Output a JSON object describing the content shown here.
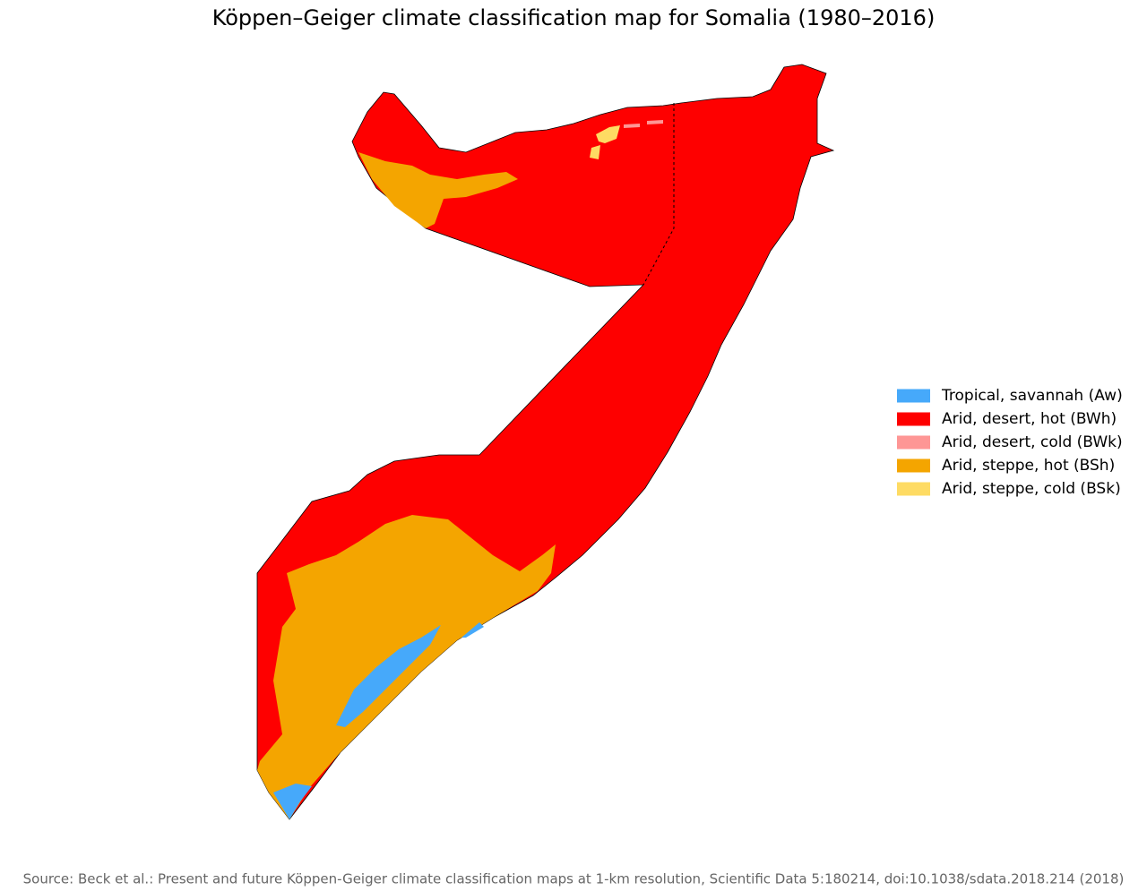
{
  "title": "Köppen–Geiger climate classification map for Somalia (1980–2016)",
  "legend": [
    {
      "label": "Tropical, savannah (Aw)",
      "color": "#46a9fa"
    },
    {
      "label": "Arid, desert, hot (BWh)",
      "color": "#fe0000"
    },
    {
      "label": "Arid, desert, cold (BWk)",
      "color": "#fe9695"
    },
    {
      "label": "Arid, steppe, hot (BSh)",
      "color": "#f4a500"
    },
    {
      "label": "Arid, steppe, cold (BSk)",
      "color": "#fedb63"
    }
  ],
  "source": "Source: Beck et al.: Present and future Köppen-Geiger climate classification maps at 1-km resolution, Scientific Data 5:180214, doi:10.1038/sdata.2018.214 (2018)"
}
